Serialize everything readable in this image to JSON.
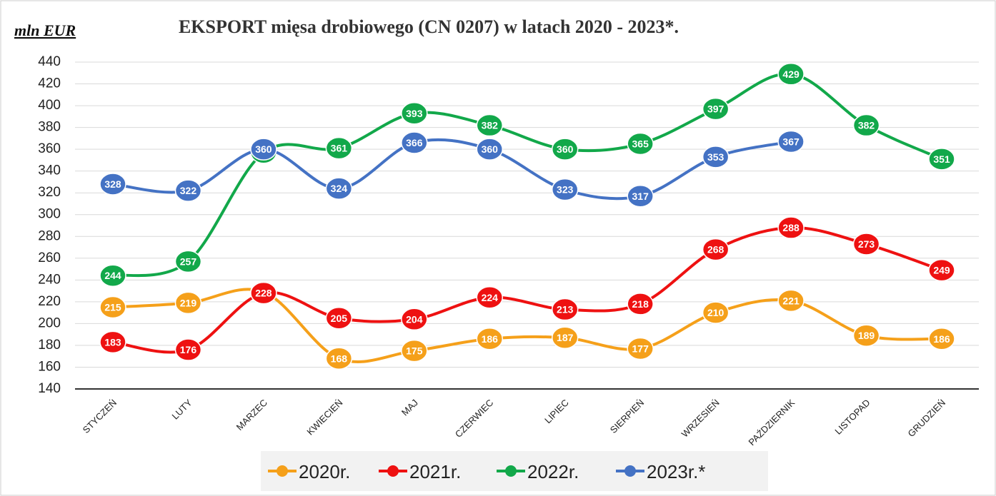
{
  "chart_data": {
    "type": "line",
    "title": "EKSPORT mięsa drobiowego (CN 0207) w latach 2020 - 2023*.",
    "y_label": "mln EUR",
    "categories": [
      "STYCZEŃ",
      "LUTY",
      "MARZEC",
      "KWIECIEŃ",
      "MAJ",
      "CZERWIEC",
      "LIPIEC",
      "SIERPIEŃ",
      "WRZESIEŃ",
      "PAŹDZIERNIK",
      "LISTOPAD",
      "GRUDZIEŃ"
    ],
    "series": [
      {
        "name": "2020r.",
        "color": "#f5a01a",
        "values": [
          215,
          219,
          229,
          168,
          175,
          186,
          187,
          177,
          210,
          221,
          189,
          186
        ]
      },
      {
        "name": "2021r.",
        "color": "#ee1111",
        "values": [
          183,
          176,
          228,
          205,
          204,
          224,
          213,
          218,
          268,
          288,
          273,
          249
        ]
      },
      {
        "name": "2022r.",
        "color": "#12a84a",
        "values": [
          244,
          257,
          357,
          361,
          393,
          382,
          360,
          365,
          397,
          429,
          382,
          351
        ]
      },
      {
        "name": "2023r.*",
        "color": "#4472c4",
        "values": [
          328,
          322,
          360,
          324,
          366,
          360,
          323,
          317,
          353,
          367,
          null,
          null
        ]
      }
    ],
    "ylim": [
      140,
      440
    ],
    "yticks": [
      140,
      160,
      180,
      200,
      220,
      240,
      260,
      280,
      300,
      320,
      340,
      360,
      380,
      400,
      420,
      440
    ],
    "grid": true,
    "legend": "bottom"
  }
}
